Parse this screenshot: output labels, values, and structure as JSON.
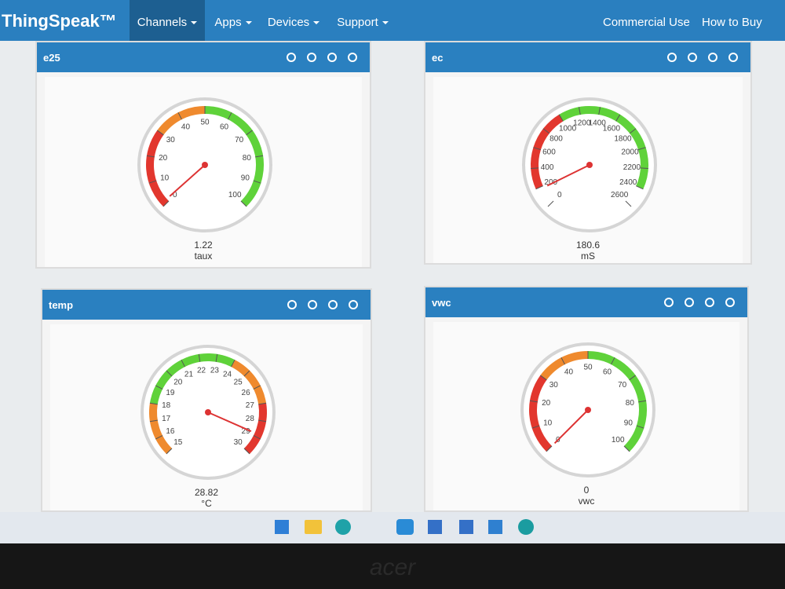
{
  "nav": {
    "brand": "ThingSpeak™",
    "menu": [
      "Channels",
      "Apps",
      "Devices",
      "Support"
    ],
    "right": [
      "Commercial Use",
      "How to Buy"
    ]
  },
  "widgets": [
    {
      "title": "e25",
      "min": 0,
      "max": 100,
      "ticks": [
        0,
        10,
        20,
        30,
        40,
        50,
        60,
        70,
        80,
        90,
        100
      ],
      "value": 1.22,
      "unit": "taux",
      "bands": [
        {
          "from": 0,
          "to": 30,
          "color": "#e2372e"
        },
        {
          "from": 30,
          "to": 50,
          "color": "#ef8a2e"
        },
        {
          "from": 50,
          "to": 100,
          "color": "#5fd23a"
        }
      ]
    },
    {
      "title": "ec",
      "min": 0,
      "max": 2600,
      "ticks": [
        0,
        200,
        400,
        600,
        800,
        1000,
        1200,
        1400,
        1600,
        1800,
        2000,
        2200,
        2400,
        2600
      ],
      "value": 180.6,
      "unit": "mS",
      "bands": [
        {
          "from": 200,
          "to": 1000,
          "color": "#e2372e"
        },
        {
          "from": 1000,
          "to": 2400,
          "color": "#5fd23a"
        }
      ]
    },
    {
      "title": "temp",
      "min": 15,
      "max": 30,
      "ticks": [
        15,
        16,
        17,
        18,
        19,
        20,
        21,
        22,
        23,
        24,
        25,
        26,
        27,
        28,
        29,
        30
      ],
      "value": 28.82,
      "unit": "°C",
      "bands": [
        {
          "from": 15,
          "to": 18,
          "color": "#ef8a2e"
        },
        {
          "from": 18,
          "to": 24,
          "color": "#5fd23a"
        },
        {
          "from": 24,
          "to": 27,
          "color": "#ef8a2e"
        },
        {
          "from": 27,
          "to": 30,
          "color": "#e2372e"
        }
      ]
    },
    {
      "title": "vwc",
      "min": 0,
      "max": 100,
      "ticks": [
        0,
        10,
        20,
        30,
        40,
        50,
        60,
        70,
        80,
        90,
        100
      ],
      "value": 0,
      "unit": "vwc",
      "bands": [
        {
          "from": 0,
          "to": 30,
          "color": "#e2372e"
        },
        {
          "from": 30,
          "to": 50,
          "color": "#ef8a2e"
        },
        {
          "from": 50,
          "to": 100,
          "color": "#5fd23a"
        }
      ]
    }
  ],
  "bezel_brand": "acer"
}
